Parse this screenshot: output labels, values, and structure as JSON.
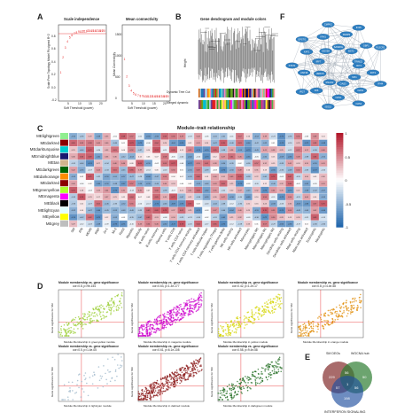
{
  "panels": {
    "A": "A",
    "B": "B",
    "C": "C",
    "D": "D",
    "E": "E",
    "F": "F"
  },
  "panelA": {
    "left_title": "Scale independence",
    "right_title": "Mean connectivity",
    "left_ylabel": "Scale Free Topology Model Fit,signed R^2",
    "right_ylabel": "Mean Connectivity",
    "xlabel": "Soft Threshold (power)",
    "left_yticks": [
      "-0.2",
      "0.0",
      "0.2",
      "0.4",
      "0.6",
      "0.8"
    ],
    "left_xticks": [
      "5",
      "10",
      "15",
      "20"
    ],
    "right_yticks": [
      "0",
      "500",
      "1000",
      "1500"
    ],
    "right_xticks": [
      "5",
      "10",
      "15",
      "20"
    ]
  },
  "panelB": {
    "title": "Gene dendrogram and module colors",
    "ylabel": "Height",
    "row1": "Dynamic Tree Cut",
    "row2": "Merged dynamic",
    "colors": [
      "#1b1b1b",
      "#6a3d9a",
      "#33a02c",
      "#e31a1c",
      "#ff7f00",
      "#1f78b4",
      "#b15928",
      "#fb9a99",
      "#a6cee3",
      "#ffff33",
      "#e7298a",
      "#66a61e",
      "#00bcd4",
      "#8dd3c7",
      "#f781bf",
      "#999999",
      "#ff00ff",
      "#4daf4a",
      "#984ea3",
      "#ffd92f",
      "#000080",
      "#d95f02",
      "#7fc97f",
      "#ff6f00"
    ]
  },
  "panelC": {
    "title": "Module–trait relationship",
    "modules": [
      "MElightgreen",
      "MEdarkred",
      "MEdarkturquoise",
      "MEmidnightblue",
      "MEtan",
      "MEdarkgreen",
      "MEdarkorange",
      "MEdarkred",
      "MEgreenyellow",
      "MEmagenta",
      "MEblack",
      "MElightcyan",
      "MEyellow",
      "MEgrey"
    ],
    "module_colors": [
      "#90ee90",
      "#8b0000",
      "#00ced1",
      "#191970",
      "#d2b48c",
      "#006400",
      "#ff8c00",
      "#8b0000",
      "#adff2f",
      "#ff00ff",
      "#000000",
      "#e0ffff",
      "#ffff00",
      "#bebebe"
    ],
    "traits": [
      "SM",
      "IFN",
      "MDA5",
      "RNP",
      "Jo-1",
      "Mi-2",
      "Ro52",
      "Myositis",
      "Antibody",
      "B cells naive",
      "B cells memory",
      "Plasma cells",
      "T cells CD8",
      "T cells CD4 naive",
      "T cells CD4 memory resting",
      "T cells CD4 memory activated",
      "T cells follicular helper",
      "T cells regulatory (Tregs)",
      "T cells gamma delta",
      "NK cells resting",
      "NK cells activated",
      "Monocytes",
      "Macrophages M0",
      "Macrophages M1",
      "Macrophages M2",
      "Dendritic cells resting",
      "Dendritic cells activated",
      "Mast cells resting",
      "Mast cells activated",
      "Eosinophils",
      "Neutrophils"
    ],
    "scale": [
      "1",
      "0.5",
      "0",
      "-0.5",
      "-1"
    ]
  },
  "panelD": {
    "plots": [
      {
        "title": "Module membership vs. gene significance",
        "sub": "cor=0.8, p=9e-154",
        "color": "#9acd32",
        "xlabel": "Module Membership in greenyellow module"
      },
      {
        "title": "Module membership vs. gene significance",
        "sub": "cor=0.63, p=1.3e-177",
        "color": "#cc00cc",
        "xlabel": "Module Membership in magenta module"
      },
      {
        "title": "Module membership vs. gene significance",
        "sub": "cor=0.42, p=1.2e-17",
        "color": "#d4d400",
        "xlabel": "Module Membership in yellow module"
      },
      {
        "title": "Module membership vs. gene significance",
        "sub": "cor=0.8, p=4.4e-58",
        "color": "#e08a00",
        "xlabel": "Module Membership in orange module"
      },
      {
        "title": "Module membership vs. gene significance",
        "sub": "cor=0.5, p=1.4e-05",
        "color": "#9ab4c8",
        "xlabel": "Module Membership in lightcyan module"
      },
      {
        "title": "Module membership vs. gene significance",
        "sub": "cor=0.61, p=6.1e-108",
        "color": "#8b1a1a",
        "xlabel": "Module Membership in darkred module"
      },
      {
        "title": "Module membership vs. gene significance",
        "sub": "cor=0.58, p=9.4e-58",
        "color": "#1e6b1e",
        "xlabel": "Module Membership in darkgreen module"
      }
    ],
    "ylabel": "Gene significance for SM"
  },
  "panelE": {
    "set1": "SM DEGs",
    "set2": "WGCNA hub",
    "set3": "INTERFERON SIGNALING",
    "n1": "229",
    "n12": "56",
    "n13": "57",
    "n123": "1",
    "n3": "198",
    "n2": "50",
    "n23": "56"
  },
  "panelF": {
    "nodes": [
      "IFIT1",
      "IFIT3",
      "IFI44",
      "MX1",
      "OAS1",
      "OAS2",
      "OAS3",
      "OASL",
      "ISG15",
      "RSAD2",
      "IFI6",
      "IFI27",
      "HERC5",
      "USP18",
      "STAT1",
      "IRF7",
      "XAF1",
      "EPSTI1",
      "DDX58",
      "IFIH1",
      "CMPK2",
      "SAMD9L",
      "PARP9",
      "IFI35",
      "BST2",
      "GBP1",
      "PLSCR1",
      "TRIM22"
    ]
  }
}
